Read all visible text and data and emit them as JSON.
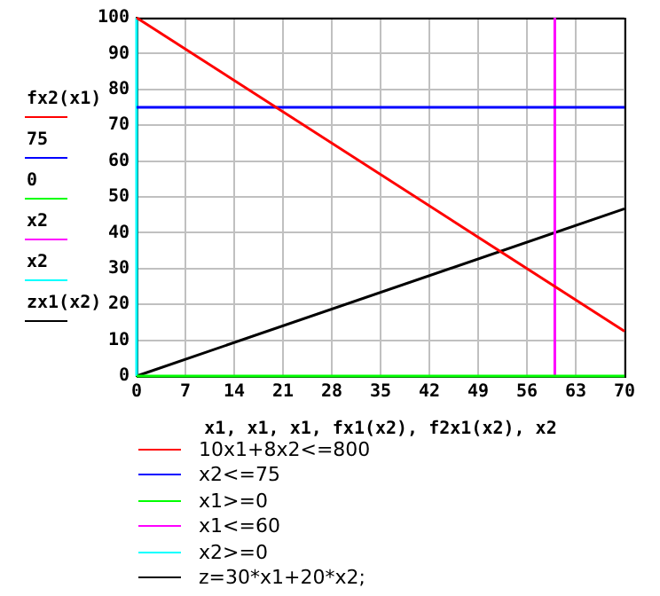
{
  "chart_data": {
    "type": "line",
    "xlabel": "x1, x1, x1, fx1(x2), f2x1(x2), x2",
    "ylabel": "fx2(x1)\n75\n0\nx2\nx2\nzx1(x2)",
    "xlim": [
      0,
      70
    ],
    "xticks": [
      0,
      7,
      14,
      21,
      28,
      35,
      42,
      49,
      56,
      63,
      70
    ],
    "ylim": [
      0,
      100
    ],
    "yticks": [
      0,
      10,
      20,
      30,
      40,
      50,
      60,
      70,
      80,
      90,
      100
    ],
    "grid": true,
    "legend": "bottom",
    "marker": "none",
    "line_style": "solid",
    "series": [
      {
        "name": "10x1+8x2<=800",
        "color": "#ff0000",
        "x": [
          0,
          70
        ],
        "values": [
          100,
          12.5
        ]
      },
      {
        "name": "x2<=75",
        "color": "#0000ff",
        "x": [
          0,
          70
        ],
        "values": [
          75,
          75
        ]
      },
      {
        "name": "x1>=0",
        "color": "#00ff00",
        "x": [
          0,
          70
        ],
        "values": [
          0,
          0
        ]
      },
      {
        "name": "x1<=60",
        "color": "#ff00ff",
        "x": [
          60,
          60
        ],
        "values": [
          0,
          100
        ]
      },
      {
        "name": "x2>=0",
        "color": "#00ffff",
        "x": [
          0,
          0
        ],
        "values": [
          0,
          100
        ]
      },
      {
        "name": "z=30*x1+20*x2;",
        "color": "#000000",
        "x": [
          0,
          70
        ],
        "values": [
          0,
          46.7
        ]
      }
    ]
  }
}
